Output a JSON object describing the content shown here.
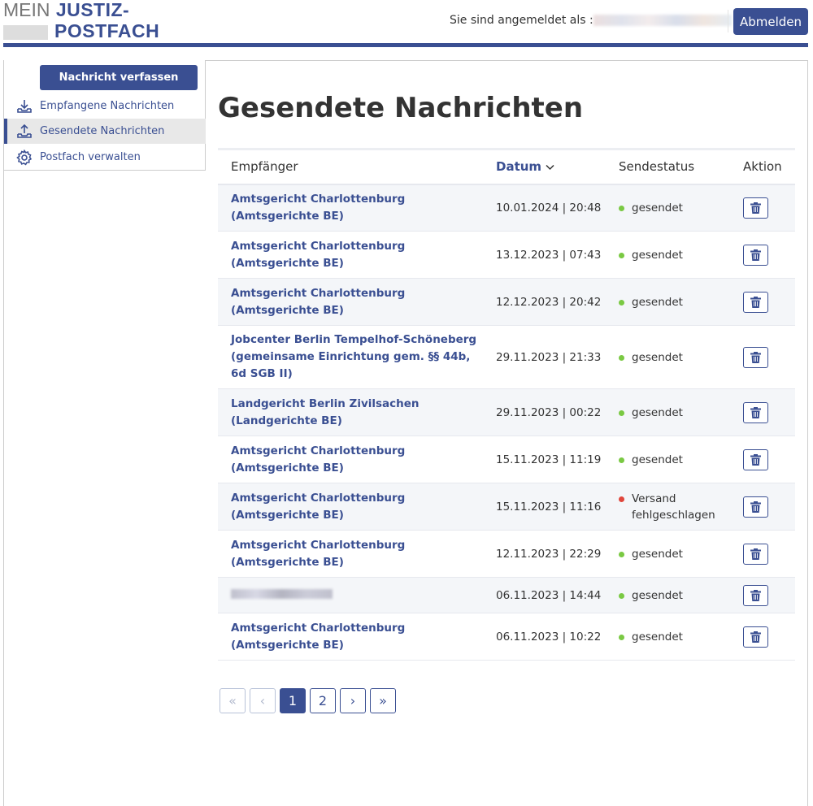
{
  "header": {
    "logo_mein": "MEIN",
    "logo_line1": "JUSTIZ-",
    "logo_line2": "POSTFACH",
    "user_label": "Sie sind angemeldet als :",
    "logout_label": "Abmelden"
  },
  "sidebar": {
    "compose_label": "Nachricht verfassen",
    "items": [
      {
        "label": "Empfangene Nachrichten",
        "icon": "inbox-download-icon"
      },
      {
        "label": "Gesendete Nachrichten",
        "icon": "outbox-upload-icon",
        "active": true
      },
      {
        "label": "Postfach verwalten",
        "icon": "gear-icon"
      }
    ]
  },
  "page_title": "Gesendete Nachrichten",
  "table": {
    "columns": {
      "recipient": "Empfänger",
      "date": "Datum",
      "status": "Sendestatus",
      "action": "Aktion"
    },
    "sort_icon": "chevron-down-icon",
    "status_colors": {
      "ok": "#7ac943",
      "fail": "#e0463c"
    },
    "rows": [
      {
        "recipient": "Amtsgericht Charlottenburg (Amtsgerichte BE)",
        "date": "10.01.2024 | 20:48",
        "status": "gesendet",
        "state": "ok"
      },
      {
        "recipient": "Amtsgericht Charlottenburg (Amtsgerichte BE)",
        "date": "13.12.2023 | 07:43",
        "status": "gesendet",
        "state": "ok"
      },
      {
        "recipient": "Amtsgericht Charlottenburg (Amtsgerichte BE)",
        "date": "12.12.2023 | 20:42",
        "status": "gesendet",
        "state": "ok"
      },
      {
        "recipient": "Jobcenter Berlin Tempelhof-Schöneberg (gemeinsame Einrichtung gem. §§ 44b, 6d SGB II)",
        "date": "29.11.2023 | 21:33",
        "status": "gesendet",
        "state": "ok"
      },
      {
        "recipient": "Landgericht Berlin Zivilsachen (Landgerichte BE)",
        "date": "29.11.2023 | 00:22",
        "status": "gesendet",
        "state": "ok"
      },
      {
        "recipient": "Amtsgericht Charlottenburg (Amtsgerichte BE)",
        "date": "15.11.2023 | 11:19",
        "status": "gesendet",
        "state": "ok"
      },
      {
        "recipient": "Amtsgericht Charlottenburg (Amtsgerichte BE)",
        "date": "15.11.2023 | 11:16",
        "status": "Versand fehlgeschlagen",
        "state": "fail"
      },
      {
        "recipient": "Amtsgericht Charlottenburg (Amtsgerichte BE)",
        "date": "12.11.2023 | 22:29",
        "status": "gesendet",
        "state": "ok"
      },
      {
        "recipient": null,
        "date": "06.11.2023 | 14:44",
        "status": "gesendet",
        "state": "ok"
      },
      {
        "recipient": "Amtsgericht Charlottenburg (Amtsgerichte BE)",
        "date": "06.11.2023 | 10:22",
        "status": "gesendet",
        "state": "ok"
      }
    ]
  },
  "pagination": {
    "first": "«",
    "prev": "‹",
    "pages": [
      "1",
      "2"
    ],
    "current": "1",
    "next": "›",
    "last": "»"
  }
}
